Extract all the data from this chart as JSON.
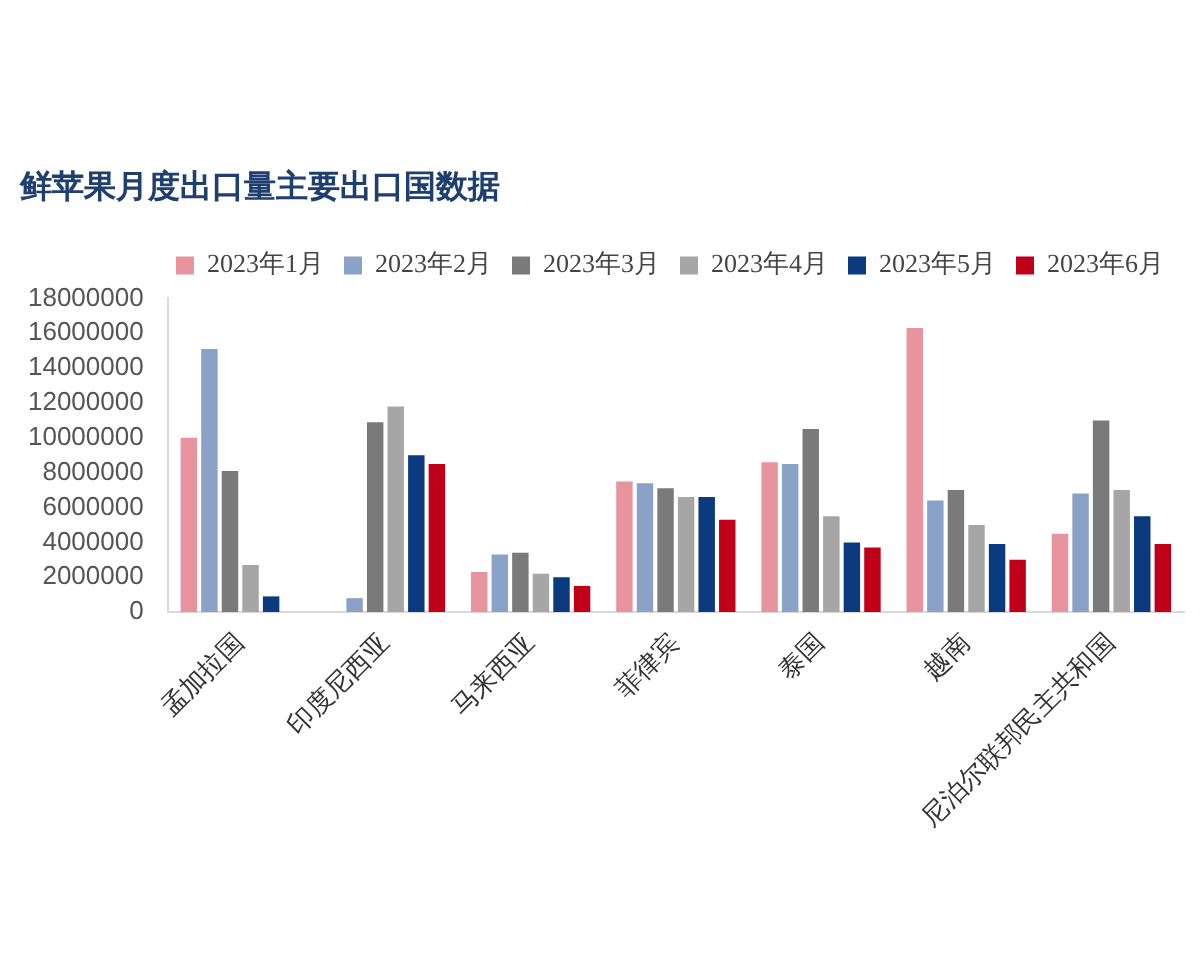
{
  "chart_data": {
    "type": "bar",
    "title": "鲜苹果月度出口量主要出口国数据",
    "categories": [
      "孟加拉国",
      "印度尼西亚",
      "马来西亚",
      "菲律宾",
      "泰国",
      "越南",
      "尼泊尔联邦民主共和国"
    ],
    "series": [
      {
        "name": "2023年1月",
        "color": "#e8949f",
        "values": [
          10000000,
          null,
          2300000,
          7500000,
          8600000,
          16300000,
          4500000
        ]
      },
      {
        "name": "2023年2月",
        "color": "#8ba2c8",
        "values": [
          15100000,
          800000,
          3300000,
          7400000,
          8500000,
          6400000,
          6800000
        ]
      },
      {
        "name": "2023年3月",
        "color": "#7a7a7a",
        "values": [
          8100000,
          10900000,
          3400000,
          7100000,
          10500000,
          7000000,
          11000000
        ]
      },
      {
        "name": "2023年4月",
        "color": "#a6a6a6",
        "values": [
          2700000,
          11800000,
          2200000,
          6600000,
          5500000,
          5000000,
          7000000
        ]
      },
      {
        "name": "2023年5月",
        "color": "#0b3a7e",
        "values": [
          900000,
          9000000,
          2000000,
          6600000,
          4000000,
          3900000,
          5500000
        ]
      },
      {
        "name": "2023年6月",
        "color": "#c00018",
        "values": [
          null,
          8500000,
          1500000,
          5300000,
          3700000,
          3000000,
          3900000
        ]
      }
    ],
    "ylim": [
      0,
      18000000
    ],
    "yticks": [
      0,
      2000000,
      4000000,
      6000000,
      8000000,
      10000000,
      12000000,
      14000000,
      16000000,
      18000000
    ],
    "grid": false,
    "legend": "top right"
  }
}
